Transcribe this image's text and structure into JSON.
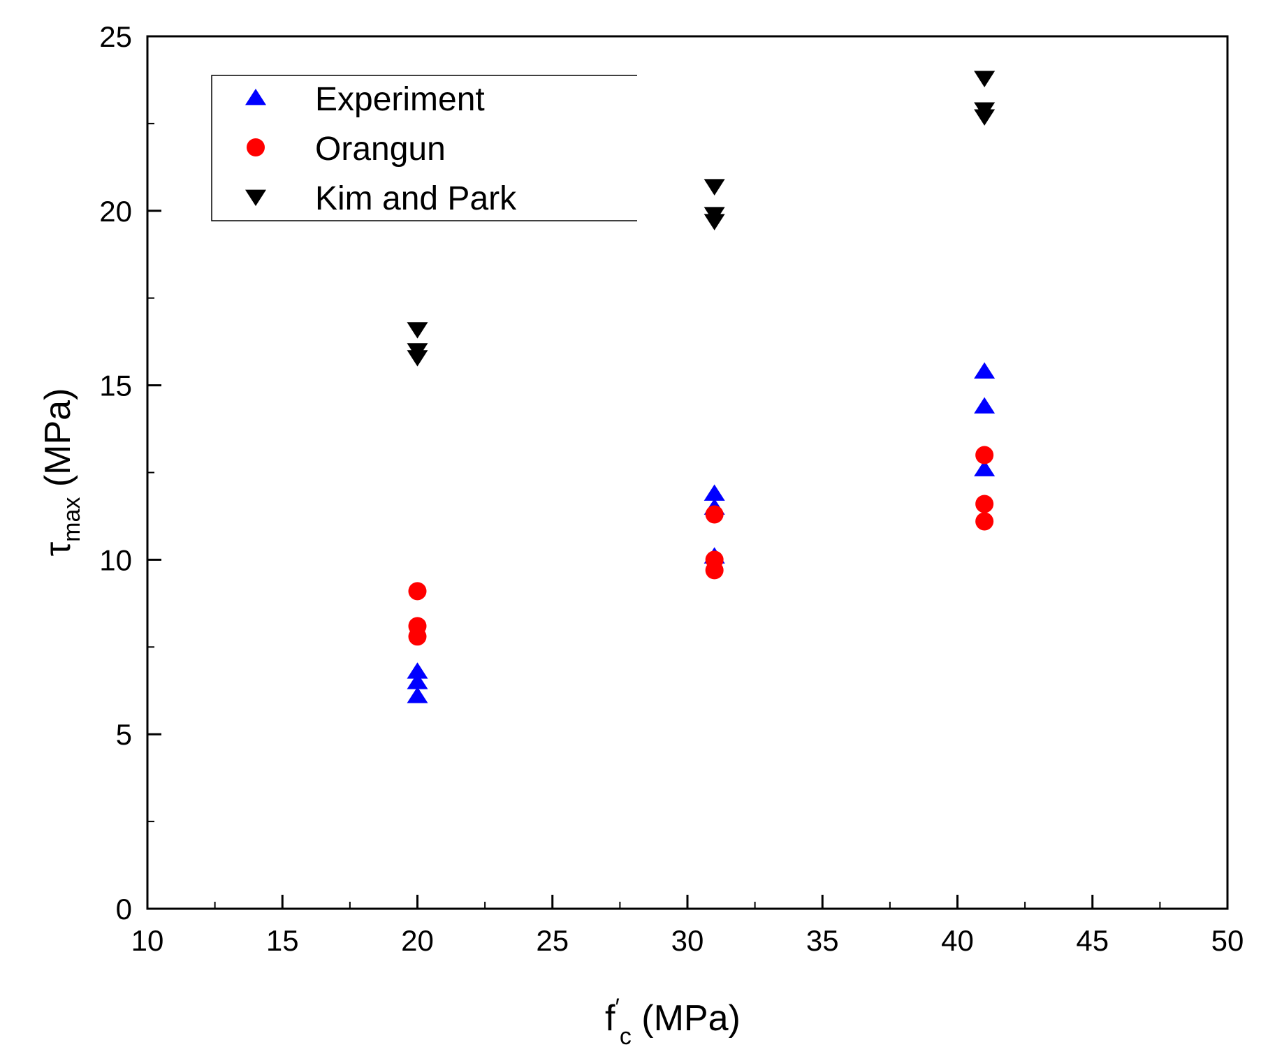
{
  "chart_data": {
    "type": "scatter",
    "title": "",
    "xlabel": {
      "main": "f",
      "prime": "′",
      "sub": "c",
      "unit": " (MPa)"
    },
    "ylabel": {
      "main": "τ",
      "sub": "max",
      "unit": " (MPa)"
    },
    "xlim": [
      10,
      50
    ],
    "ylim": [
      0,
      25
    ],
    "x_ticks": [
      10,
      15,
      20,
      25,
      30,
      35,
      40,
      45,
      50
    ],
    "x_tick_labels": [
      "10",
      "15",
      "20",
      "25",
      "30",
      "35",
      "40",
      "45",
      "50"
    ],
    "y_ticks": [
      0,
      5,
      10,
      15,
      20,
      25
    ],
    "y_tick_labels": [
      "0",
      "5",
      "10",
      "15",
      "20",
      "25"
    ],
    "x_minor_step": 2.5,
    "y_minor_step": 2.5,
    "grid": false,
    "legend_position": "top-left",
    "series": [
      {
        "name": "Experiment",
        "marker": "triangle-up",
        "color": "#0000ff",
        "points": [
          [
            20,
            6.8
          ],
          [
            20,
            6.5
          ],
          [
            20,
            6.1
          ],
          [
            31,
            11.9
          ],
          [
            31,
            11.5
          ],
          [
            31,
            10.1
          ],
          [
            41,
            15.4
          ],
          [
            41,
            14.4
          ],
          [
            41,
            12.6
          ]
        ]
      },
      {
        "name": "Orangun",
        "marker": "circle",
        "color": "#ff0000",
        "points": [
          [
            20,
            9.1
          ],
          [
            20,
            8.1
          ],
          [
            20,
            7.8
          ],
          [
            31,
            11.3
          ],
          [
            31,
            10.0
          ],
          [
            31,
            9.7
          ],
          [
            41,
            13.0
          ],
          [
            41,
            11.6
          ],
          [
            41,
            11.1
          ]
        ]
      },
      {
        "name": "Kim and Park",
        "marker": "triangle-down",
        "color": "#000000",
        "points": [
          [
            20,
            16.6
          ],
          [
            20,
            16.0
          ],
          [
            20,
            15.8
          ],
          [
            31,
            20.7
          ],
          [
            31,
            19.9
          ],
          [
            31,
            19.7
          ],
          [
            41,
            23.8
          ],
          [
            41,
            22.9
          ],
          [
            41,
            22.7
          ]
        ]
      }
    ]
  }
}
